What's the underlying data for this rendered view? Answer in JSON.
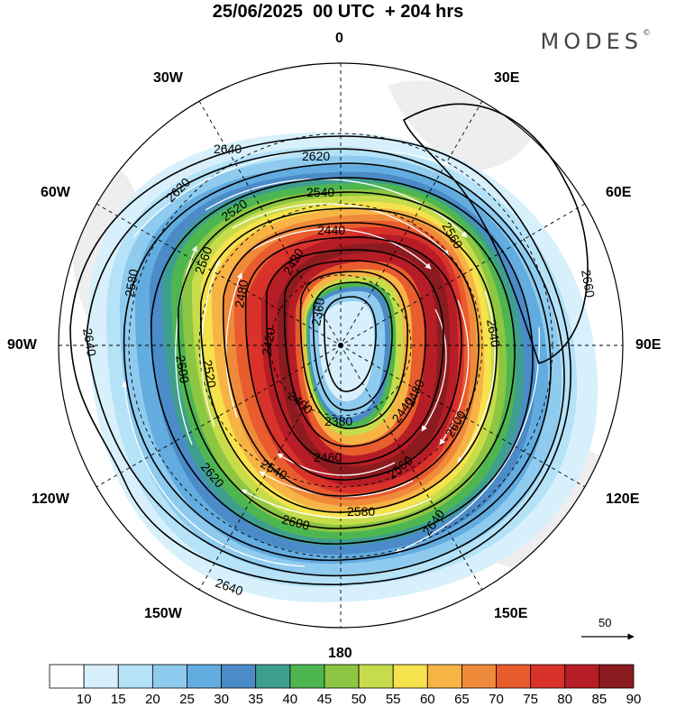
{
  "title": "25/06/2025  00 UTC  + 204 hrs",
  "brand": "MODES",
  "brand_mark": "©",
  "longitude_labels": {
    "lon_0": "0",
    "lon_30e": "30E",
    "lon_60e": "60E",
    "lon_90e": "90E",
    "lon_120e": "120E",
    "lon_150e": "150E",
    "lon_180": "180",
    "lon_150w": "150W",
    "lon_120w": "120W",
    "lon_90w": "90W",
    "lon_60w": "60W",
    "lon_30w": "30W"
  },
  "contour_labels": [
    "2640",
    "2620",
    "2540",
    "2560",
    "2440",
    "2520",
    "2420",
    "2560",
    "2360",
    "2480",
    "2580",
    "2660",
    "2620",
    "2640",
    "2600",
    "2520",
    "2420",
    "2640",
    "2480",
    "2400",
    "2440",
    "2600",
    "2380",
    "2460",
    "2580",
    "2540",
    "2560",
    "2620",
    "2600",
    "2640",
    "2640"
  ],
  "reference_vector": "50",
  "colorbar": {
    "ticks": [
      "10",
      "15",
      "20",
      "25",
      "30",
      "35",
      "40",
      "45",
      "50",
      "55",
      "60",
      "65",
      "70",
      "75",
      "80",
      "85",
      "90"
    ],
    "colors": [
      "#ffffff",
      "#d7f0fb",
      "#b5e2f7",
      "#8ecbee",
      "#63ace0",
      "#4b8cc8",
      "#3f9f8f",
      "#4db651",
      "#8dc642",
      "#c7dc4a",
      "#f6e24c",
      "#f7b445",
      "#f08a3b",
      "#e85c2e",
      "#d8322b",
      "#b71d26",
      "#8c1b1f"
    ]
  }
}
